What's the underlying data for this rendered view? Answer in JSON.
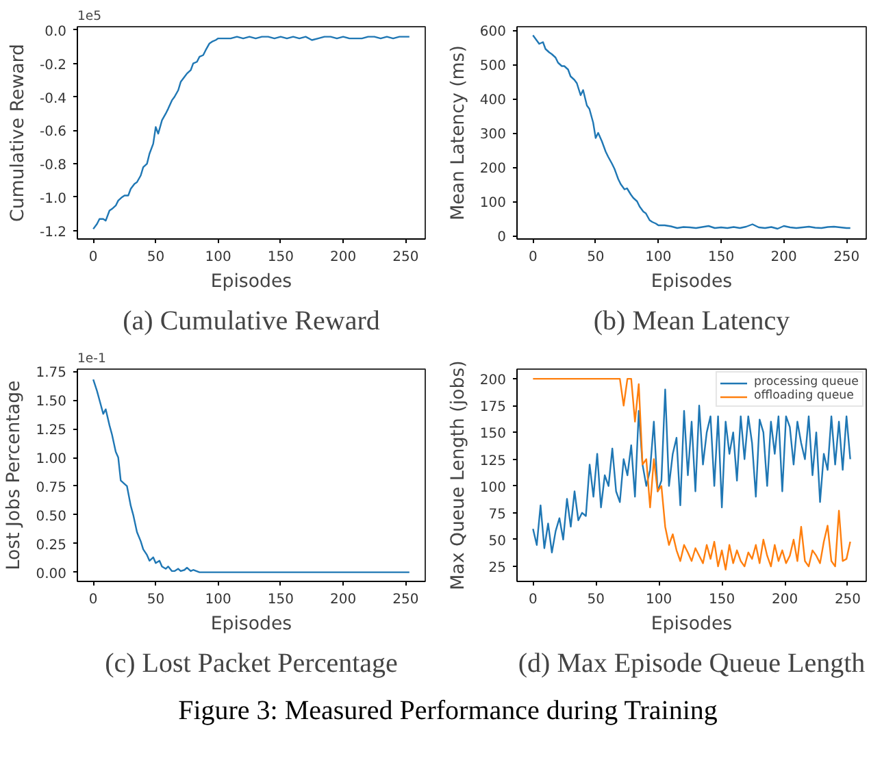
{
  "chart_data": [
    {
      "type": "line",
      "title": "(a) Cumulative Reward",
      "xlabel": "Episodes",
      "ylabel": "Cumulative Reward",
      "annotations": [
        "1e5"
      ],
      "xlim": [
        -12.7,
        265.7
      ],
      "xticks": [
        0,
        50,
        100,
        150,
        200,
        250
      ],
      "ylim": [
        -1.25,
        0.02
      ],
      "yticks": [
        {
          "value": -1.2,
          "label": "-1.2"
        },
        {
          "value": -1.0,
          "label": "-1.0"
        },
        {
          "value": -0.8,
          "label": "-0.8"
        },
        {
          "value": -0.6,
          "label": "-0.6"
        },
        {
          "value": -0.4,
          "label": "-0.4"
        },
        {
          "value": -0.2,
          "label": "-0.2"
        },
        {
          "value": 0,
          "label": "0.0"
        }
      ],
      "series": [
        {
          "color": "#1f77b4",
          "x": [
            0,
            3,
            5,
            8,
            10,
            13,
            15,
            18,
            20,
            23,
            25,
            28,
            30,
            33,
            35,
            38,
            40,
            43,
            45,
            48,
            50,
            52,
            55,
            58,
            60,
            63,
            65,
            68,
            70,
            73,
            75,
            78,
            80,
            83,
            85,
            88,
            90,
            93,
            95,
            98,
            100,
            105,
            110,
            115,
            120,
            125,
            130,
            135,
            140,
            145,
            150,
            155,
            160,
            165,
            170,
            175,
            180,
            185,
            190,
            195,
            200,
            205,
            210,
            215,
            220,
            225,
            230,
            235,
            240,
            245,
            250,
            253
          ],
          "values": [
            -1.19,
            -1.16,
            -1.13,
            -1.13,
            -1.14,
            -1.08,
            -1.07,
            -1.05,
            -1.02,
            -1.0,
            -0.99,
            -0.99,
            -0.95,
            -0.92,
            -0.91,
            -0.87,
            -0.82,
            -0.8,
            -0.74,
            -0.68,
            -0.58,
            -0.62,
            -0.54,
            -0.5,
            -0.47,
            -0.42,
            -0.4,
            -0.36,
            -0.31,
            -0.28,
            -0.26,
            -0.24,
            -0.2,
            -0.19,
            -0.16,
            -0.15,
            -0.12,
            -0.08,
            -0.07,
            -0.06,
            -0.05,
            -0.05,
            -0.05,
            -0.04,
            -0.05,
            -0.04,
            -0.05,
            -0.04,
            -0.04,
            -0.05,
            -0.04,
            -0.05,
            -0.04,
            -0.05,
            -0.04,
            -0.06,
            -0.05,
            -0.04,
            -0.04,
            -0.05,
            -0.04,
            -0.05,
            -0.05,
            -0.05,
            -0.04,
            -0.04,
            -0.05,
            -0.04,
            -0.05,
            -0.04,
            -0.04,
            -0.04
          ]
        }
      ]
    },
    {
      "type": "line",
      "title": "(b) Mean Latency",
      "xlabel": "Episodes",
      "ylabel": "Mean Latency (ms)",
      "xlim": [
        -12.7,
        265.7
      ],
      "xticks": [
        0,
        50,
        100,
        150,
        200,
        250
      ],
      "ylim": [
        -10,
        610
      ],
      "yticks": [
        0,
        100,
        200,
        300,
        400,
        500,
        600
      ],
      "series": [
        {
          "color": "#1f77b4",
          "x": [
            0,
            3,
            5,
            8,
            10,
            13,
            15,
            18,
            20,
            23,
            25,
            28,
            30,
            33,
            35,
            38,
            40,
            43,
            45,
            48,
            50,
            52,
            55,
            58,
            60,
            63,
            65,
            68,
            70,
            73,
            75,
            78,
            80,
            83,
            85,
            88,
            90,
            93,
            95,
            98,
            100,
            105,
            110,
            115,
            120,
            125,
            130,
            135,
            140,
            145,
            150,
            155,
            160,
            165,
            170,
            175,
            180,
            185,
            190,
            195,
            200,
            205,
            210,
            215,
            220,
            225,
            230,
            235,
            240,
            245,
            250,
            253
          ],
          "values": [
            585,
            570,
            560,
            565,
            545,
            535,
            530,
            520,
            505,
            495,
            495,
            485,
            465,
            455,
            445,
            410,
            425,
            380,
            370,
            330,
            285,
            300,
            275,
            245,
            230,
            210,
            195,
            165,
            150,
            135,
            138,
            120,
            110,
            100,
            85,
            70,
            65,
            45,
            40,
            35,
            30,
            30,
            27,
            22,
            25,
            24,
            22,
            25,
            28,
            22,
            24,
            22,
            25,
            22,
            26,
            33,
            24,
            22,
            25,
            20,
            28,
            24,
            22,
            24,
            26,
            23,
            22,
            25,
            26,
            24,
            22,
            22
          ]
        }
      ]
    },
    {
      "type": "line",
      "title": "(c) Lost Packet Percentage",
      "xlabel": "Episodes",
      "ylabel": "Lost Jobs Percentage",
      "annotations": [
        "1e-1"
      ],
      "xlim": [
        -12.7,
        265.7
      ],
      "xticks": [
        0,
        50,
        100,
        150,
        200,
        250
      ],
      "ylim": [
        -0.08,
        1.77
      ],
      "yticks": [
        {
          "value": 0,
          "label": "0.00"
        },
        {
          "value": 0.25,
          "label": "0.25"
        },
        {
          "value": 0.5,
          "label": "0.50"
        },
        {
          "value": 0.75,
          "label": "0.75"
        },
        {
          "value": 1.0,
          "label": "1.00"
        },
        {
          "value": 1.25,
          "label": "1.25"
        },
        {
          "value": 1.5,
          "label": "1.50"
        },
        {
          "value": 1.75,
          "label": "1.75"
        }
      ],
      "series": [
        {
          "color": "#1f77b4",
          "x": [
            0,
            3,
            5,
            8,
            10,
            13,
            15,
            18,
            20,
            22,
            25,
            27,
            30,
            32,
            35,
            38,
            40,
            43,
            45,
            48,
            50,
            53,
            55,
            58,
            60,
            63,
            65,
            68,
            70,
            73,
            75,
            78,
            80,
            85,
            100,
            150,
            200,
            253
          ],
          "values": [
            1.68,
            1.58,
            1.5,
            1.38,
            1.42,
            1.28,
            1.2,
            1.05,
            1.0,
            0.8,
            0.77,
            0.75,
            0.58,
            0.5,
            0.35,
            0.27,
            0.2,
            0.15,
            0.1,
            0.13,
            0.08,
            0.1,
            0.05,
            0.03,
            0.05,
            0.01,
            0.01,
            0.03,
            0.01,
            0.02,
            0.04,
            0.01,
            0.02,
            0,
            0,
            0,
            0,
            0
          ]
        }
      ]
    },
    {
      "type": "line",
      "title": "(d) Max Episode Queue Length",
      "xlabel": "Episodes",
      "ylabel": "Max Queue Length (jobs)",
      "annotations": [
        "Figure 3: Measured Performance during Training"
      ],
      "legend": "top right",
      "xlim": [
        -12.7,
        264.7
      ],
      "xticks": [
        0,
        50,
        100,
        150,
        200,
        250
      ],
      "ylim": [
        11,
        209
      ],
      "yticks": [
        25,
        50,
        75,
        100,
        125,
        150,
        175,
        200
      ],
      "x": [
        0,
        3,
        6,
        9,
        12,
        15,
        18,
        21,
        24,
        27,
        30,
        33,
        36,
        39,
        42,
        45,
        48,
        51,
        54,
        57,
        60,
        63,
        66,
        69,
        72,
        75,
        78,
        81,
        84,
        87,
        90,
        93,
        96,
        99,
        102,
        105,
        108,
        111,
        114,
        117,
        120,
        123,
        126,
        129,
        132,
        135,
        138,
        141,
        144,
        147,
        150,
        153,
        156,
        159,
        162,
        165,
        168,
        171,
        174,
        177,
        180,
        183,
        186,
        189,
        192,
        195,
        198,
        201,
        204,
        207,
        210,
        213,
        216,
        219,
        222,
        225,
        228,
        231,
        234,
        237,
        240,
        243,
        246,
        249,
        252
      ],
      "series": [
        {
          "name": "processing queue",
          "color": "#1f77b4",
          "values": [
            60,
            45,
            82,
            42,
            65,
            38,
            58,
            70,
            50,
            88,
            62,
            95,
            68,
            75,
            72,
            120,
            90,
            130,
            80,
            110,
            100,
            135,
            95,
            85,
            125,
            110,
            138,
            90,
            170,
            120,
            100,
            115,
            160,
            95,
            105,
            190,
            100,
            130,
            145,
            82,
            170,
            110,
            160,
            95,
            175,
            120,
            150,
            165,
            100,
            165,
            80,
            160,
            130,
            150,
            105,
            165,
            125,
            165,
            140,
            90,
            162,
            150,
            100,
            160,
            130,
            165,
            95,
            165,
            155,
            120,
            160,
            140,
            125,
            165,
            110,
            150,
            85,
            130,
            115,
            165,
            120,
            160,
            115,
            165,
            125
          ]
        },
        {
          "name": "offloading queue",
          "color": "#ff7f0e",
          "values": [
            200,
            200,
            200,
            200,
            200,
            200,
            200,
            200,
            200,
            200,
            200,
            200,
            200,
            200,
            200,
            200,
            200,
            200,
            200,
            200,
            200,
            200,
            200,
            200,
            175,
            200,
            200,
            160,
            195,
            120,
            125,
            80,
            125,
            95,
            100,
            62,
            45,
            55,
            40,
            30,
            45,
            38,
            30,
            42,
            35,
            28,
            45,
            32,
            48,
            25,
            40,
            22,
            45,
            28,
            40,
            30,
            25,
            38,
            32,
            45,
            28,
            50,
            35,
            25,
            45,
            30,
            40,
            28,
            35,
            50,
            30,
            62,
            30,
            25,
            40,
            35,
            28,
            48,
            63,
            30,
            25,
            77,
            30,
            32,
            48
          ]
        }
      ]
    }
  ]
}
